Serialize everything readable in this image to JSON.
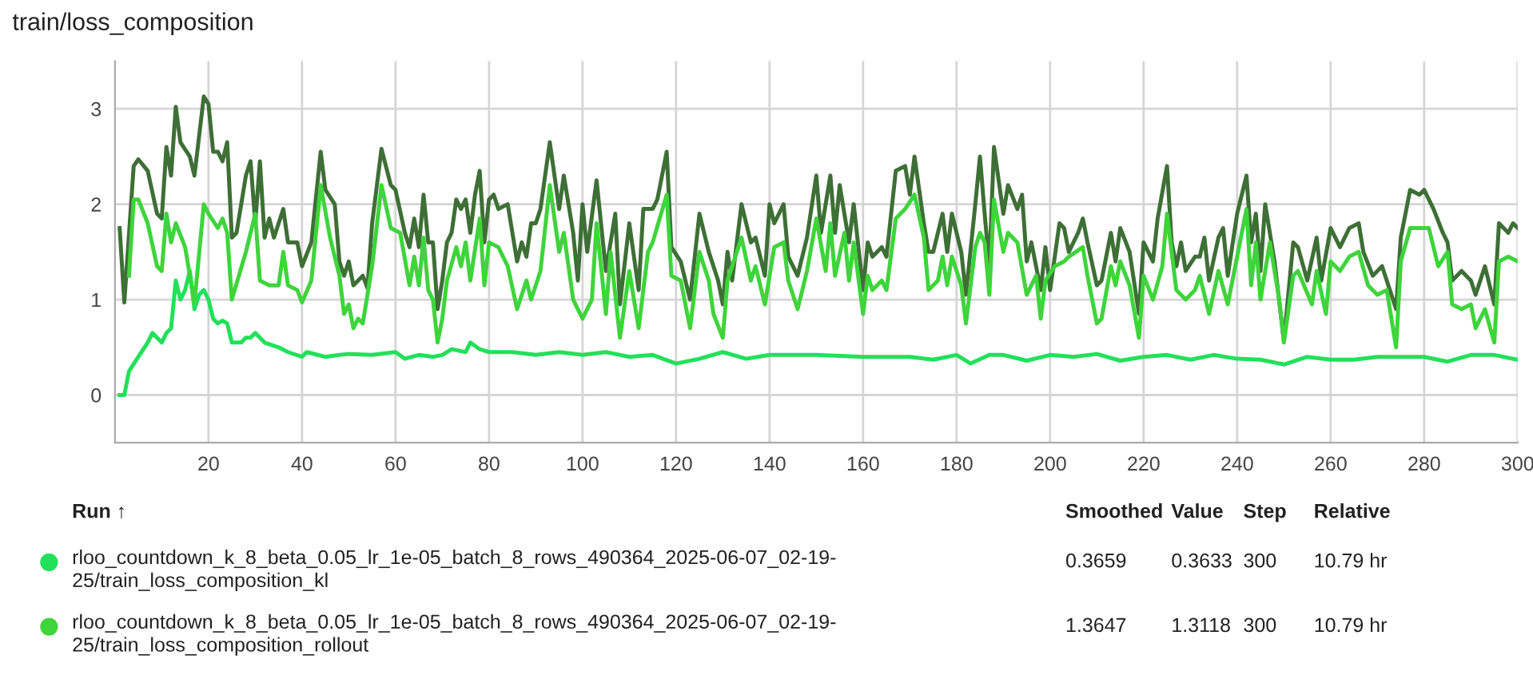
{
  "chart_data": {
    "type": "line",
    "title": "train/loss_composition",
    "xlim": [
      0,
      300
    ],
    "xticks": [
      20,
      40,
      60,
      80,
      100,
      120,
      140,
      160,
      180,
      200,
      220,
      240,
      260,
      280,
      300
    ],
    "ylim": [
      -0.5,
      3.5
    ],
    "yticks": [
      0,
      1,
      2,
      3
    ],
    "grid": true,
    "legend": "bottom",
    "marker": "none",
    "line_style": "solid",
    "series": [
      {
        "color": "#3e6f36",
        "x": [
          1,
          2,
          4,
          5,
          7,
          9,
          10,
          11,
          12,
          13,
          14,
          16,
          17,
          19,
          20,
          21,
          22,
          23,
          24,
          25,
          26,
          28,
          29,
          30,
          31,
          32,
          33,
          34,
          36,
          37,
          39,
          40,
          42,
          44,
          45,
          47,
          48,
          49,
          50,
          51,
          53,
          54,
          55,
          57,
          59,
          60,
          62,
          63,
          64,
          65,
          66,
          67,
          68,
          69,
          70,
          71,
          72,
          73,
          74,
          75,
          76,
          77,
          78,
          79,
          80,
          81,
          82,
          84,
          86,
          87,
          88,
          89,
          90,
          91,
          93,
          95,
          96,
          98,
          99,
          100,
          101,
          103,
          105,
          107,
          108,
          110,
          112,
          113,
          115,
          116,
          118,
          119,
          121,
          123,
          125,
          127,
          129,
          130,
          131,
          132,
          134,
          136,
          137,
          139,
          140,
          141,
          143,
          144,
          146,
          148,
          150,
          151,
          153,
          154,
          155,
          157,
          158,
          160,
          161,
          162,
          164,
          165,
          167,
          169,
          170,
          171,
          173,
          174,
          175,
          177,
          178,
          179,
          181,
          182,
          184,
          185,
          186,
          187,
          188,
          190,
          191,
          193,
          194,
          195,
          196,
          198,
          199,
          200,
          202,
          203,
          204,
          206,
          207,
          208,
          210,
          211,
          213,
          214,
          215,
          217,
          219,
          220,
          222,
          223,
          225,
          226,
          227,
          228,
          229,
          231,
          232,
          233,
          234,
          236,
          237,
          238,
          240,
          242,
          243,
          244,
          245,
          246,
          248,
          250,
          252,
          253,
          255,
          257,
          258,
          260,
          262,
          264,
          266,
          267,
          269,
          271,
          274,
          275,
          277,
          279,
          280,
          282,
          284,
          285,
          286,
          288,
          290,
          291,
          293,
          295,
          296,
          298,
          299,
          300
        ],
        "values": [
          1.75,
          0.97,
          2.4,
          2.47,
          2.35,
          1.9,
          1.85,
          2.6,
          2.3,
          3.02,
          2.65,
          2.5,
          2.3,
          3.13,
          3.05,
          2.55,
          2.55,
          2.45,
          2.65,
          1.65,
          1.7,
          2.3,
          2.45,
          1.8,
          2.45,
          1.65,
          1.85,
          1.65,
          1.95,
          1.6,
          1.6,
          1.35,
          1.6,
          2.55,
          2.15,
          2.0,
          1.4,
          1.25,
          1.4,
          1.15,
          1.25,
          1.12,
          1.8,
          2.58,
          2.2,
          2.15,
          1.7,
          1.55,
          1.85,
          1.55,
          2.1,
          1.6,
          1.6,
          0.9,
          1.2,
          1.6,
          1.7,
          2.05,
          1.95,
          2.05,
          1.7,
          2.1,
          2.35,
          1.6,
          2.05,
          2.1,
          1.95,
          2.0,
          1.4,
          1.6,
          1.45,
          1.8,
          1.8,
          1.95,
          2.65,
          1.95,
          2.3,
          1.7,
          1.2,
          2.0,
          1.5,
          2.25,
          1.3,
          1.9,
          0.95,
          1.8,
          1.1,
          1.95,
          1.95,
          2.05,
          2.55,
          1.55,
          1.4,
          1.0,
          1.9,
          1.5,
          1.2,
          0.95,
          1.5,
          1.2,
          2.0,
          1.6,
          1.65,
          1.25,
          2.0,
          1.8,
          2.0,
          1.45,
          1.25,
          1.65,
          2.3,
          1.7,
          2.3,
          1.7,
          2.2,
          1.6,
          2.0,
          1.1,
          1.6,
          1.45,
          1.55,
          1.45,
          2.35,
          2.4,
          2.1,
          2.5,
          1.8,
          1.5,
          1.5,
          1.9,
          1.5,
          1.9,
          1.5,
          1.05,
          2.0,
          2.5,
          1.9,
          1.35,
          2.6,
          1.9,
          2.2,
          1.95,
          2.1,
          1.4,
          1.6,
          1.1,
          1.55,
          1.1,
          1.8,
          1.75,
          1.5,
          1.7,
          1.85,
          1.6,
          1.15,
          1.2,
          1.7,
          1.4,
          1.75,
          1.5,
          0.85,
          1.6,
          1.4,
          1.85,
          2.4,
          1.6,
          1.35,
          1.6,
          1.3,
          1.45,
          1.45,
          1.65,
          1.2,
          1.65,
          1.75,
          1.25,
          1.9,
          2.3,
          1.6,
          1.9,
          1.3,
          2.0,
          1.4,
          0.57,
          1.6,
          1.55,
          1.2,
          1.65,
          1.2,
          1.75,
          1.55,
          1.75,
          1.8,
          1.5,
          1.25,
          1.35,
          0.9,
          1.65,
          2.15,
          2.1,
          2.15,
          1.95,
          1.7,
          1.6,
          1.2,
          1.3,
          1.2,
          1.05,
          1.35,
          0.95,
          1.8,
          1.7,
          1.8,
          1.75
        ]
      },
      {
        "name": "rloo_countdown_k_8_beta_0.05_lr_1e-05_batch_8_rows_490364_2025-06-07_02-19-\n25/train_loss_composition_kl",
        "color": "#22e05a",
        "x": [
          1,
          2,
          3,
          5,
          7,
          8,
          10,
          11,
          12,
          13,
          14,
          15,
          16,
          17,
          18,
          19,
          20,
          21,
          22,
          23,
          24,
          25,
          27,
          28,
          29,
          30,
          32,
          35,
          37,
          40,
          41,
          45,
          48,
          50,
          55,
          60,
          62,
          65,
          68,
          70,
          72,
          75,
          76,
          78,
          80,
          85,
          90,
          95,
          100,
          105,
          110,
          115,
          120,
          125,
          130,
          135,
          140,
          150,
          160,
          170,
          175,
          180,
          183,
          187,
          190,
          195,
          200,
          205,
          210,
          215,
          220,
          225,
          230,
          235,
          240,
          245,
          250,
          255,
          260,
          265,
          270,
          275,
          280,
          285,
          290,
          295,
          300
        ],
        "values": [
          0,
          0,
          0.25,
          0.4,
          0.55,
          0.65,
          0.55,
          0.65,
          0.7,
          1.2,
          1.0,
          1.1,
          1.3,
          0.9,
          1.05,
          1.1,
          1.0,
          0.8,
          0.75,
          0.78,
          0.75,
          0.55,
          0.55,
          0.6,
          0.6,
          0.65,
          0.55,
          0.5,
          0.45,
          0.4,
          0.45,
          0.4,
          0.42,
          0.43,
          0.42,
          0.45,
          0.38,
          0.42,
          0.4,
          0.42,
          0.48,
          0.45,
          0.55,
          0.48,
          0.45,
          0.45,
          0.42,
          0.45,
          0.42,
          0.45,
          0.4,
          0.42,
          0.33,
          0.38,
          0.45,
          0.38,
          0.42,
          0.42,
          0.4,
          0.4,
          0.37,
          0.42,
          0.33,
          0.42,
          0.42,
          0.36,
          0.42,
          0.4,
          0.43,
          0.36,
          0.4,
          0.42,
          0.37,
          0.42,
          0.38,
          0.37,
          0.32,
          0.4,
          0.37,
          0.37,
          0.4,
          0.4,
          0.4,
          0.35,
          0.42,
          0.42,
          0.37
        ]
      },
      {
        "name": "rloo_countdown_k_8_beta_0.05_lr_1e-05_batch_8_rows_490364_2025-06-07_02-19-\n25/train_loss_composition_rollout",
        "color": "#3fd43c",
        "x": [
          3,
          4,
          5,
          7,
          9,
          10,
          11,
          12,
          13,
          15,
          17,
          19,
          20,
          22,
          23,
          24,
          25,
          28,
          30,
          31,
          33,
          35,
          36,
          37,
          39,
          40,
          42,
          44,
          46,
          48,
          49,
          50,
          51,
          52,
          53,
          55,
          57,
          59,
          61,
          63,
          64,
          65,
          66,
          67,
          68,
          69,
          70,
          71,
          73,
          74,
          75,
          76,
          78,
          79,
          80,
          82,
          83,
          84,
          86,
          88,
          89,
          91,
          93,
          95,
          96,
          98,
          100,
          102,
          103,
          105,
          106,
          108,
          110,
          112,
          114,
          115,
          118,
          119,
          121,
          123,
          125,
          127,
          128,
          130,
          131,
          134,
          136,
          137,
          139,
          141,
          143,
          144,
          146,
          148,
          150,
          152,
          153,
          154,
          156,
          157,
          158,
          160,
          161,
          162,
          164,
          165,
          167,
          169,
          171,
          173,
          174,
          176,
          177,
          178,
          179,
          181,
          182,
          184,
          185,
          186,
          187,
          188,
          190,
          191,
          193,
          195,
          197,
          198,
          199,
          201,
          203,
          204,
          207,
          208,
          210,
          211,
          213,
          214,
          215,
          217,
          219,
          220,
          222,
          224,
          225,
          227,
          229,
          231,
          232,
          234,
          236,
          238,
          240,
          242,
          243,
          244,
          245,
          247,
          249,
          250,
          252,
          253,
          256,
          257,
          259,
          260,
          262,
          264,
          266,
          268,
          270,
          272,
          274,
          275,
          277,
          279,
          281,
          283,
          285,
          286,
          288,
          290,
          291,
          293,
          295,
          296,
          298,
          300
        ],
        "values": [
          1.25,
          2.05,
          2.05,
          1.8,
          1.35,
          1.3,
          1.9,
          1.6,
          1.8,
          1.55,
          0.97,
          2.0,
          1.9,
          1.75,
          1.85,
          1.7,
          1.0,
          1.5,
          1.9,
          1.2,
          1.15,
          1.15,
          1.5,
          1.15,
          1.1,
          0.97,
          1.2,
          2.2,
          1.65,
          1.25,
          0.85,
          0.95,
          0.7,
          0.8,
          0.75,
          1.35,
          2.2,
          1.75,
          1.7,
          1.15,
          1.45,
          1.15,
          1.65,
          1.1,
          1.0,
          0.55,
          0.8,
          1.2,
          1.55,
          1.35,
          1.6,
          1.2,
          1.85,
          1.15,
          1.6,
          1.55,
          1.45,
          1.35,
          0.9,
          1.2,
          1.0,
          1.3,
          2.2,
          1.5,
          1.7,
          1.0,
          0.8,
          1.0,
          1.8,
          0.85,
          1.5,
          0.6,
          1.3,
          0.7,
          1.5,
          1.6,
          2.1,
          1.25,
          1.2,
          0.7,
          1.5,
          1.2,
          0.85,
          0.6,
          1.2,
          1.65,
          1.2,
          1.35,
          0.95,
          1.55,
          1.6,
          1.2,
          0.9,
          1.3,
          1.85,
          1.3,
          1.8,
          1.25,
          1.7,
          1.2,
          1.6,
          0.85,
          1.25,
          1.1,
          1.2,
          1.1,
          1.85,
          1.95,
          2.1,
          1.65,
          1.1,
          1.2,
          1.45,
          1.15,
          1.45,
          1.15,
          0.75,
          1.55,
          1.7,
          1.6,
          1.05,
          2.05,
          1.5,
          1.7,
          1.6,
          1.05,
          1.25,
          0.8,
          1.2,
          1.35,
          1.4,
          1.45,
          1.55,
          1.25,
          0.75,
          0.8,
          1.35,
          1.15,
          1.4,
          1.15,
          0.6,
          1.25,
          1.0,
          1.35,
          1.9,
          1.1,
          1.0,
          1.1,
          1.25,
          0.85,
          1.3,
          0.95,
          1.45,
          1.95,
          1.15,
          1.6,
          1.0,
          1.6,
          1.0,
          0.55,
          1.25,
          1.3,
          0.95,
          1.3,
          0.85,
          1.4,
          1.3,
          1.45,
          1.5,
          1.15,
          1.05,
          1.1,
          0.5,
          1.4,
          1.75,
          1.75,
          1.75,
          1.35,
          1.5,
          0.95,
          0.9,
          0.95,
          0.7,
          0.9,
          0.55,
          1.4,
          1.45,
          1.4
        ]
      }
    ],
    "annotations": [
      "Run ↑",
      "Smoothed",
      "Value",
      "Step",
      "Relative",
      "0.3659",
      "0.3633",
      "300",
      "10.79 hr",
      "1.3647",
      "1.3118",
      "300",
      "10.79 hr"
    ]
  }
}
